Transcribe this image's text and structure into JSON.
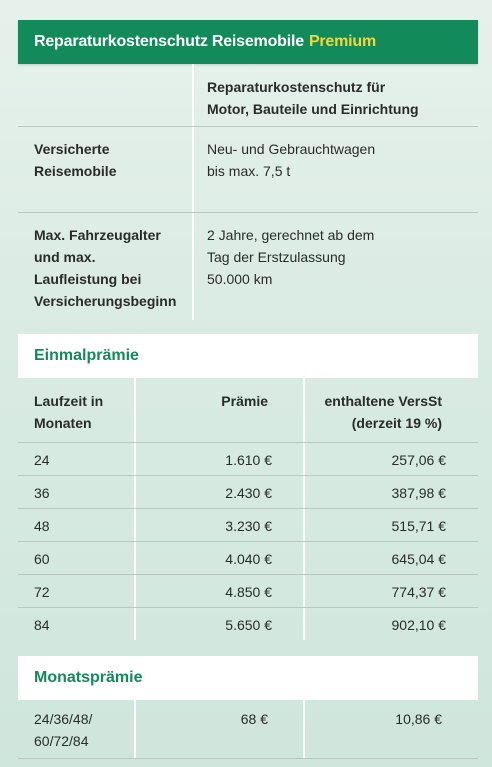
{
  "header": {
    "title": "Reparaturkostenschutz Reisemobile",
    "highlight": "Premium"
  },
  "info": {
    "column_header_line1": "Reparaturkostenschutz für",
    "column_header_line2": "Motor, Bauteile und Einrichtung",
    "rows": [
      {
        "label_lines": [
          "Versicherte",
          "Reisemobile"
        ],
        "value_lines": [
          "Neu- und Gebrauchtwagen",
          "bis max. 7,5 t"
        ]
      },
      {
        "label_lines": [
          "Max. Fahrzeugalter",
          "und max.",
          "Laufleistung bei",
          "Versicherungsbeginn"
        ],
        "value_lines": [
          "2 Jahre, gerechnet ab dem",
          "Tag der Erstzulassung",
          "50.000 km"
        ]
      }
    ]
  },
  "einmal": {
    "title": "Einmalprämie",
    "columns": {
      "laufzeit": [
        "Laufzeit in",
        "Monaten"
      ],
      "praemie": "Prämie",
      "versst": [
        "enthaltene VersSt",
        "(derzeit 19 %)"
      ]
    },
    "rows": [
      {
        "laufzeit": "24",
        "praemie": "1.610 €",
        "versst": "257,06 €"
      },
      {
        "laufzeit": "36",
        "praemie": "2.430 €",
        "versst": "387,98 €"
      },
      {
        "laufzeit": "48",
        "praemie": "3.230 €",
        "versst": "515,71 €"
      },
      {
        "laufzeit": "60",
        "praemie": "4.040 €",
        "versst": "645,04 €"
      },
      {
        "laufzeit": "72",
        "praemie": "4.850 €",
        "versst": "774,37 €"
      },
      {
        "laufzeit": "84",
        "praemie": "5.650 €",
        "versst": "902,10 €"
      }
    ]
  },
  "monat": {
    "title": "Monatsprämie",
    "laufzeit_lines": [
      "24/36/48/",
      "60/72/84"
    ],
    "praemie": "68 €",
    "versst": "10,86 €"
  },
  "colors": {
    "accent_green": "#128a5a",
    "premium_yellow": "#f2d73b"
  }
}
